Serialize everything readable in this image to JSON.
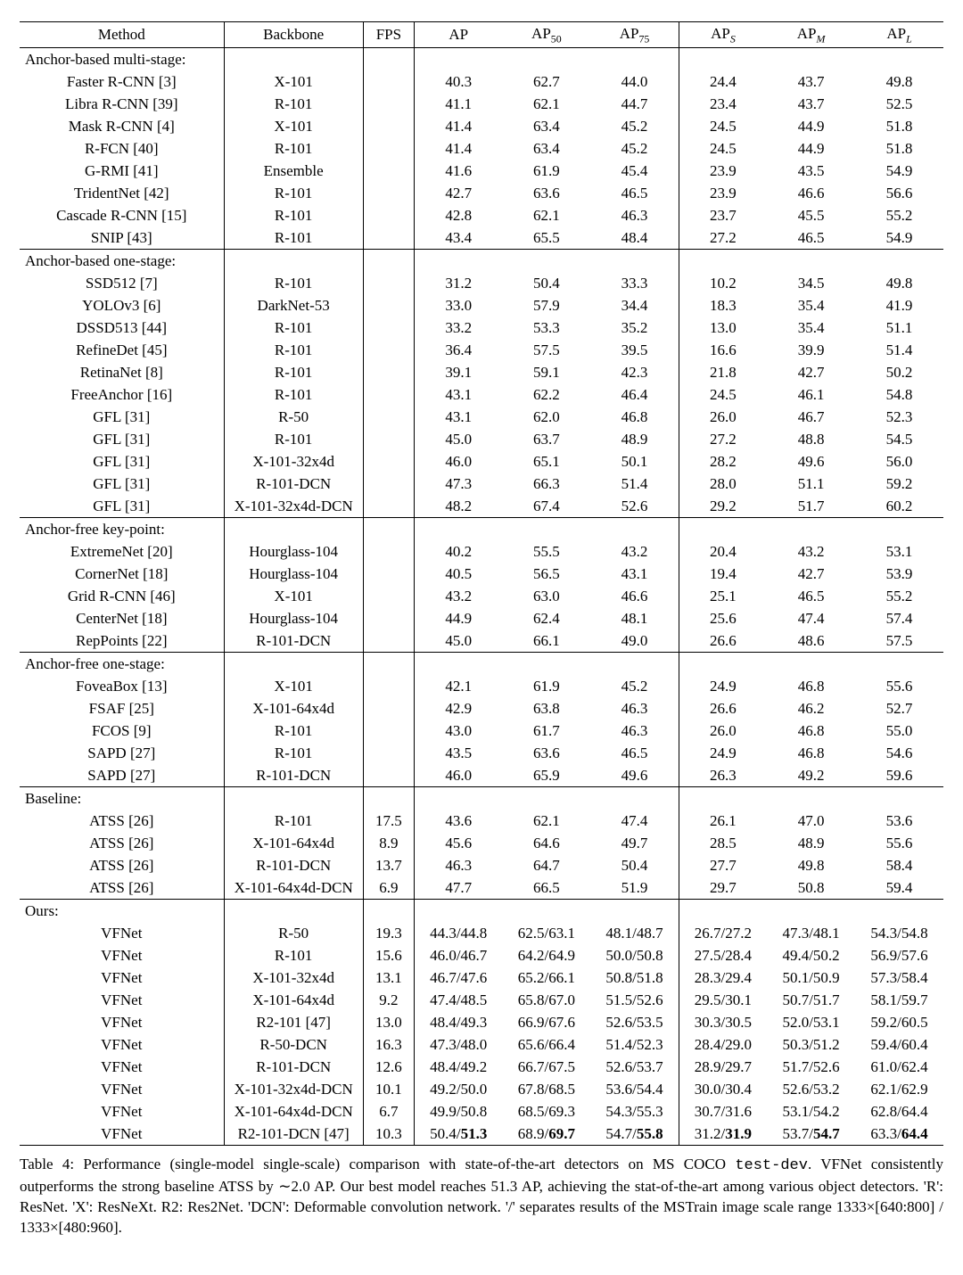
{
  "table": {
    "headers": {
      "method": "Method",
      "backbone": "Backbone",
      "fps": "FPS",
      "ap": "AP",
      "ap50_pre": "AP",
      "ap50_sub": "50",
      "ap75_pre": "AP",
      "ap75_sub": "75",
      "aps_pre": "AP",
      "aps_sub": "S",
      "apm_pre": "AP",
      "apm_sub": "M",
      "apl_pre": "AP",
      "apl_sub": "L"
    },
    "groups": [
      {
        "label": "Anchor-based multi-stage:",
        "rows": [
          {
            "m": "Faster R-CNN [3]",
            "b": "X-101",
            "f": "",
            "v": [
              "40.3",
              "62.7",
              "44.0",
              "24.4",
              "43.7",
              "49.8"
            ]
          },
          {
            "m": "Libra R-CNN [39]",
            "b": "R-101",
            "f": "",
            "v": [
              "41.1",
              "62.1",
              "44.7",
              "23.4",
              "43.7",
              "52.5"
            ]
          },
          {
            "m": "Mask R-CNN [4]",
            "b": "X-101",
            "f": "",
            "v": [
              "41.4",
              "63.4",
              "45.2",
              "24.5",
              "44.9",
              "51.8"
            ]
          },
          {
            "m": "R-FCN [40]",
            "b": "R-101",
            "f": "",
            "v": [
              "41.4",
              "63.4",
              "45.2",
              "24.5",
              "44.9",
              "51.8"
            ]
          },
          {
            "m": "G-RMI [41]",
            "b": "Ensemble",
            "f": "",
            "v": [
              "41.6",
              "61.9",
              "45.4",
              "23.9",
              "43.5",
              "54.9"
            ]
          },
          {
            "m": "TridentNet [42]",
            "b": "R-101",
            "f": "",
            "v": [
              "42.7",
              "63.6",
              "46.5",
              "23.9",
              "46.6",
              "56.6"
            ]
          },
          {
            "m": "Cascade R-CNN [15]",
            "b": "R-101",
            "f": "",
            "v": [
              "42.8",
              "62.1",
              "46.3",
              "23.7",
              "45.5",
              "55.2"
            ]
          },
          {
            "m": "SNIP [43]",
            "b": "R-101",
            "f": "",
            "v": [
              "43.4",
              "65.5",
              "48.4",
              "27.2",
              "46.5",
              "54.9"
            ]
          }
        ]
      },
      {
        "label": "Anchor-based one-stage:",
        "rows": [
          {
            "m": "SSD512 [7]",
            "b": "R-101",
            "f": "",
            "v": [
              "31.2",
              "50.4",
              "33.3",
              "10.2",
              "34.5",
              "49.8"
            ]
          },
          {
            "m": "YOLOv3 [6]",
            "b": "DarkNet-53",
            "f": "",
            "v": [
              "33.0",
              "57.9",
              "34.4",
              "18.3",
              "35.4",
              "41.9"
            ]
          },
          {
            "m": "DSSD513 [44]",
            "b": "R-101",
            "f": "",
            "v": [
              "33.2",
              "53.3",
              "35.2",
              "13.0",
              "35.4",
              "51.1"
            ]
          },
          {
            "m": "RefineDet [45]",
            "b": "R-101",
            "f": "",
            "v": [
              "36.4",
              "57.5",
              "39.5",
              "16.6",
              "39.9",
              "51.4"
            ]
          },
          {
            "m": "RetinaNet [8]",
            "b": "R-101",
            "f": "",
            "v": [
              "39.1",
              "59.1",
              "42.3",
              "21.8",
              "42.7",
              "50.2"
            ]
          },
          {
            "m": "FreeAnchor [16]",
            "b": "R-101",
            "f": "",
            "v": [
              "43.1",
              "62.2",
              "46.4",
              "24.5",
              "46.1",
              "54.8"
            ]
          },
          {
            "m": "GFL [31]",
            "b": "R-50",
            "f": "",
            "v": [
              "43.1",
              "62.0",
              "46.8",
              "26.0",
              "46.7",
              "52.3"
            ]
          },
          {
            "m": "GFL [31]",
            "b": "R-101",
            "f": "",
            "v": [
              "45.0",
              "63.7",
              "48.9",
              "27.2",
              "48.8",
              "54.5"
            ]
          },
          {
            "m": "GFL [31]",
            "b": "X-101-32x4d",
            "f": "",
            "v": [
              "46.0",
              "65.1",
              "50.1",
              "28.2",
              "49.6",
              "56.0"
            ]
          },
          {
            "m": "GFL [31]",
            "b": "R-101-DCN",
            "f": "",
            "v": [
              "47.3",
              "66.3",
              "51.4",
              "28.0",
              "51.1",
              "59.2"
            ]
          },
          {
            "m": "GFL [31]",
            "b": "X-101-32x4d-DCN",
            "f": "",
            "v": [
              "48.2",
              "67.4",
              "52.6",
              "29.2",
              "51.7",
              "60.2"
            ]
          }
        ]
      },
      {
        "label": "Anchor-free key-point:",
        "rows": [
          {
            "m": "ExtremeNet [20]",
            "b": "Hourglass-104",
            "f": "",
            "v": [
              "40.2",
              "55.5",
              "43.2",
              "20.4",
              "43.2",
              "53.1"
            ]
          },
          {
            "m": "CornerNet [18]",
            "b": "Hourglass-104",
            "f": "",
            "v": [
              "40.5",
              "56.5",
              "43.1",
              "19.4",
              "42.7",
              "53.9"
            ]
          },
          {
            "m": "Grid R-CNN [46]",
            "b": "X-101",
            "f": "",
            "v": [
              "43.2",
              "63.0",
              "46.6",
              "25.1",
              "46.5",
              "55.2"
            ]
          },
          {
            "m": "CenterNet [18]",
            "b": "Hourglass-104",
            "f": "",
            "v": [
              "44.9",
              "62.4",
              "48.1",
              "25.6",
              "47.4",
              "57.4"
            ]
          },
          {
            "m": "RepPoints [22]",
            "b": "R-101-DCN",
            "f": "",
            "v": [
              "45.0",
              "66.1",
              "49.0",
              "26.6",
              "48.6",
              "57.5"
            ]
          }
        ]
      },
      {
        "label": "Anchor-free one-stage:",
        "rows": [
          {
            "m": "FoveaBox [13]",
            "b": "X-101",
            "f": "",
            "v": [
              "42.1",
              "61.9",
              "45.2",
              "24.9",
              "46.8",
              "55.6"
            ]
          },
          {
            "m": "FSAF [25]",
            "b": "X-101-64x4d",
            "f": "",
            "v": [
              "42.9",
              "63.8",
              "46.3",
              "26.6",
              "46.2",
              "52.7"
            ]
          },
          {
            "m": "FCOS [9]",
            "b": "R-101",
            "f": "",
            "v": [
              "43.0",
              "61.7",
              "46.3",
              "26.0",
              "46.8",
              "55.0"
            ]
          },
          {
            "m": "SAPD [27]",
            "b": "R-101",
            "f": "",
            "v": [
              "43.5",
              "63.6",
              "46.5",
              "24.9",
              "46.8",
              "54.6"
            ]
          },
          {
            "m": "SAPD [27]",
            "b": "R-101-DCN",
            "f": "",
            "v": [
              "46.0",
              "65.9",
              "49.6",
              "26.3",
              "49.2",
              "59.6"
            ]
          }
        ]
      },
      {
        "label": "Baseline:",
        "rows": [
          {
            "m": "ATSS [26]",
            "b": "R-101",
            "f": "17.5",
            "v": [
              "43.6",
              "62.1",
              "47.4",
              "26.1",
              "47.0",
              "53.6"
            ]
          },
          {
            "m": "ATSS [26]",
            "b": "X-101-64x4d",
            "f": "8.9",
            "v": [
              "45.6",
              "64.6",
              "49.7",
              "28.5",
              "48.9",
              "55.6"
            ]
          },
          {
            "m": "ATSS [26]",
            "b": "R-101-DCN",
            "f": "13.7",
            "v": [
              "46.3",
              "64.7",
              "50.4",
              "27.7",
              "49.8",
              "58.4"
            ]
          },
          {
            "m": "ATSS [26]",
            "b": "X-101-64x4d-DCN",
            "f": "6.9",
            "v": [
              "47.7",
              "66.5",
              "51.9",
              "29.7",
              "50.8",
              "59.4"
            ]
          }
        ]
      },
      {
        "label": "Ours:",
        "rows": [
          {
            "m": "VFNet",
            "b": "R-50",
            "f": "19.3",
            "v": [
              "44.3/44.8",
              "62.5/63.1",
              "48.1/48.7",
              "26.7/27.2",
              "47.3/48.1",
              "54.3/54.8"
            ]
          },
          {
            "m": "VFNet",
            "b": "R-101",
            "f": "15.6",
            "v": [
              "46.0/46.7",
              "64.2/64.9",
              "50.0/50.8",
              "27.5/28.4",
              "49.4/50.2",
              "56.9/57.6"
            ]
          },
          {
            "m": "VFNet",
            "b": "X-101-32x4d",
            "f": "13.1",
            "v": [
              "46.7/47.6",
              "65.2/66.1",
              "50.8/51.8",
              "28.3/29.4",
              "50.1/50.9",
              "57.3/58.4"
            ]
          },
          {
            "m": "VFNet",
            "b": "X-101-64x4d",
            "f": "9.2",
            "v": [
              "47.4/48.5",
              "65.8/67.0",
              "51.5/52.6",
              "29.5/30.1",
              "50.7/51.7",
              "58.1/59.7"
            ]
          },
          {
            "m": "VFNet",
            "b": "R2-101 [47]",
            "f": "13.0",
            "v": [
              "48.4/49.3",
              "66.9/67.6",
              "52.6/53.5",
              "30.3/30.5",
              "52.0/53.1",
              "59.2/60.5"
            ]
          },
          {
            "m": "VFNet",
            "b": "R-50-DCN",
            "f": "16.3",
            "v": [
              "47.3/48.0",
              "65.6/66.4",
              "51.4/52.3",
              "28.4/29.0",
              "50.3/51.2",
              "59.4/60.4"
            ]
          },
          {
            "m": "VFNet",
            "b": "R-101-DCN",
            "f": "12.6",
            "v": [
              "48.4/49.2",
              "66.7/67.5",
              "52.6/53.7",
              "28.9/29.7",
              "51.7/52.6",
              "61.0/62.4"
            ]
          },
          {
            "m": "VFNet",
            "b": "X-101-32x4d-DCN",
            "f": "10.1",
            "v": [
              "49.2/50.0",
              "67.8/68.5",
              "53.6/54.4",
              "30.0/30.4",
              "52.6/53.2",
              "62.1/62.9"
            ]
          },
          {
            "m": "VFNet",
            "b": "X-101-64x4d-DCN",
            "f": "6.7",
            "v": [
              "49.9/50.8",
              "68.5/69.3",
              "54.3/55.3",
              "30.7/31.6",
              "53.1/54.2",
              "62.8/64.4"
            ]
          },
          {
            "m": "VFNet",
            "b": "R2-101-DCN [47]",
            "f": "10.3",
            "v": [
              {
                "a": "50.4/",
                "bold": "51.3"
              },
              {
                "a": "68.9/",
                "bold": "69.7"
              },
              {
                "a": "54.7/",
                "bold": "55.8"
              },
              {
                "a": "31.2/",
                "bold": "31.9"
              },
              {
                "a": "53.7/",
                "bold": "54.7"
              },
              {
                "a": "63.3/",
                "bold": "64.4"
              }
            ]
          }
        ]
      }
    ]
  },
  "caption": {
    "lead": "Table 4: Performance (single-model single-scale) comparison with state-of-the-art detectors on MS COCO ",
    "tt": "test-dev",
    "tail": ". VFNet consistently outperforms the strong baseline ATSS by ∼2.0 AP. Our best model reaches 51.3 AP, achieving the stat-of-the-art among various object detectors.  'R': ResNet.  'X': ResNeXt.  R2: Res2Net.  'DCN': Deformable convolution network. '/' separates results of the MSTrain image scale range 1333×[640:800] / 1333×[480:960]."
  }
}
